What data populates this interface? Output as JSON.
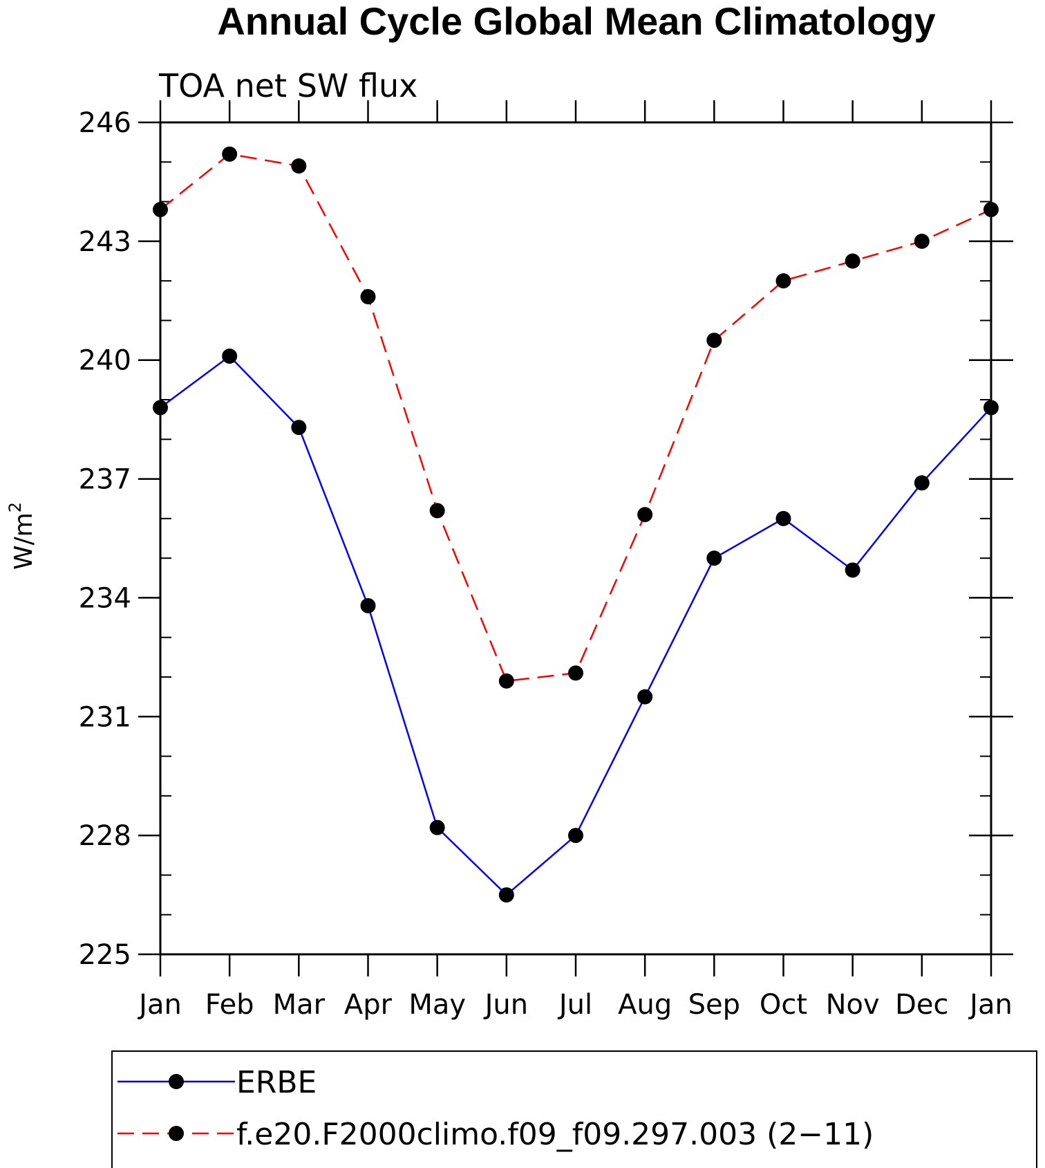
{
  "chart_data": {
    "type": "line",
    "title": "Annual Cycle Global Mean Climatology",
    "subtitle": "TOA net SW flux",
    "xlabel": "",
    "ylabel_base": "W/m",
    "ylabel_sup": "2",
    "categories": [
      "Jan",
      "Feb",
      "Mar",
      "Apr",
      "May",
      "Jun",
      "Jul",
      "Aug",
      "Sep",
      "Oct",
      "Nov",
      "Dec",
      "Jan"
    ],
    "ylim": [
      225,
      246
    ],
    "yticks": [
      225,
      228,
      231,
      234,
      237,
      240,
      243,
      246
    ],
    "y_minor_step": 1,
    "legend_position": "bottom",
    "series": [
      {
        "name": "ERBE",
        "color": "#0000ff",
        "dash": "solid",
        "marker": "circle",
        "values": [
          238.8,
          240.1,
          238.3,
          233.8,
          228.2,
          226.5,
          228.0,
          231.5,
          235.0,
          236.0,
          234.7,
          236.9,
          238.8
        ]
      },
      {
        "name": "f.e20.F2000climo.f09_f09.297.003 (2−11)",
        "color": "#ff0000",
        "dash": "dashed",
        "marker": "circle",
        "values": [
          243.8,
          245.2,
          244.9,
          241.6,
          236.2,
          231.9,
          232.1,
          236.1,
          240.5,
          242.0,
          242.5,
          243.0,
          243.8
        ]
      }
    ]
  }
}
